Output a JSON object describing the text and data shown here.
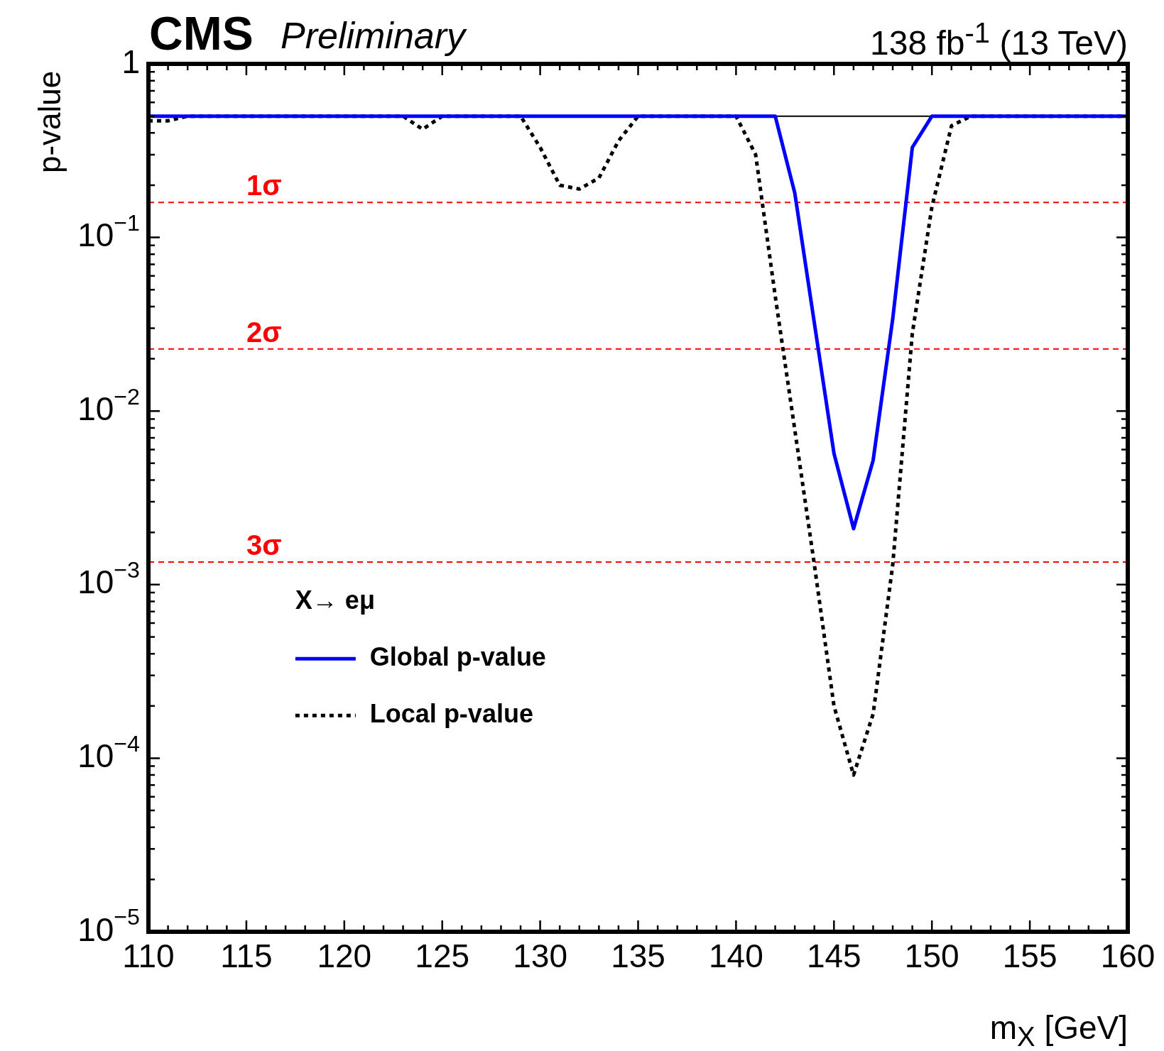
{
  "chart_data": {
    "type": "line",
    "title": "CMS",
    "subtitle": "Preliminary",
    "annotations": [
      "138 fb$^{-1}$ (13 TeV)"
    ],
    "xlabel": "m$_{X}$ [GeV]",
    "ylabel": "p-value",
    "legend_title": "X→ eμ",
    "legend": "bottom left",
    "log": "y",
    "xlim": [
      110,
      160
    ],
    "xticks": [
      110,
      115,
      120,
      125,
      130,
      135,
      140,
      145,
      150,
      155,
      160
    ],
    "ylim": [
      1e-05,
      1
    ],
    "yticks": [
      {
        "value": 1e-05,
        "label": "10$^{−5}$"
      },
      {
        "value": 0.0001,
        "label": "10$^{−4}$"
      },
      {
        "value": 0.001,
        "label": "10$^{−3}$"
      },
      {
        "value": 0.01,
        "label": "10$^{−2}$"
      },
      {
        "value": 0.1,
        "label": "10$^{−1}$"
      },
      {
        "value": 1,
        "label": "1"
      }
    ],
    "series": [
      {
        "name": "Global p-value",
        "color": "#0000ff",
        "line_style": "solid",
        "x": [
          110,
          142,
          143,
          145,
          146,
          147,
          148,
          149,
          150,
          160
        ],
        "values": [
          0.5,
          0.5,
          0.18,
          0.0057,
          0.0021,
          0.0052,
          0.034,
          0.33,
          0.5,
          0.5
        ]
      },
      {
        "name": "Local p-value",
        "color": "#000000",
        "line_style": "dotted",
        "x": [
          110,
          111,
          112,
          123,
          124,
          125,
          129,
          130,
          131,
          132,
          133,
          134,
          135,
          140,
          141,
          142,
          143,
          144,
          145,
          146,
          147,
          148,
          149,
          150,
          151,
          152,
          160
        ],
        "values": [
          0.47,
          0.47,
          0.5,
          0.5,
          0.42,
          0.5,
          0.5,
          0.33,
          0.2,
          0.19,
          0.22,
          0.36,
          0.5,
          0.5,
          0.3,
          0.046,
          0.0078,
          0.0013,
          0.0002,
          8e-05,
          0.00018,
          0.0013,
          0.028,
          0.15,
          0.44,
          0.5,
          0.5
        ]
      }
    ],
    "ref_lines": [
      {
        "axis": "y",
        "value": 0.5,
        "label": null,
        "color": "#000000",
        "line_style": "solid"
      },
      {
        "axis": "y",
        "value": 0.159,
        "label": "1σ",
        "color": "#ff0000",
        "line_style": "dashed"
      },
      {
        "axis": "y",
        "value": 0.0228,
        "label": "2σ",
        "color": "#ff0000",
        "line_style": "dashed"
      },
      {
        "axis": "y",
        "value": 0.00135,
        "label": "3σ",
        "color": "#ff0000",
        "line_style": "dashed"
      }
    ]
  }
}
